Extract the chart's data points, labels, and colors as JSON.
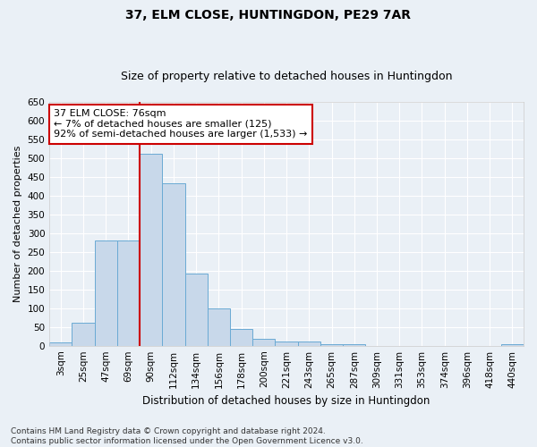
{
  "title": "37, ELM CLOSE, HUNTINGDON, PE29 7AR",
  "subtitle": "Size of property relative to detached houses in Huntingdon",
  "xlabel": "Distribution of detached houses by size in Huntingdon",
  "ylabel": "Number of detached properties",
  "categories": [
    "3sqm",
    "25sqm",
    "47sqm",
    "69sqm",
    "90sqm",
    "112sqm",
    "134sqm",
    "156sqm",
    "178sqm",
    "200sqm",
    "221sqm",
    "243sqm",
    "265sqm",
    "287sqm",
    "309sqm",
    "331sqm",
    "353sqm",
    "374sqm",
    "396sqm",
    "418sqm",
    "440sqm"
  ],
  "values": [
    8,
    62,
    280,
    280,
    512,
    432,
    193,
    100,
    45,
    18,
    12,
    10,
    5,
    4,
    0,
    0,
    0,
    0,
    0,
    0,
    4
  ],
  "bar_color": "#c8d8ea",
  "bar_edge_color": "#6aaad4",
  "background_color": "#eaf0f6",
  "grid_color": "#ffffff",
  "annotation_text": "37 ELM CLOSE: 76sqm\n← 7% of detached houses are smaller (125)\n92% of semi-detached houses are larger (1,533) →",
  "annotation_box_color": "#ffffff",
  "annotation_box_edge_color": "#cc0000",
  "vline_color": "#cc0000",
  "ylim": [
    0,
    650
  ],
  "yticks": [
    0,
    50,
    100,
    150,
    200,
    250,
    300,
    350,
    400,
    450,
    500,
    550,
    600,
    650
  ],
  "footer_text": "Contains HM Land Registry data © Crown copyright and database right 2024.\nContains public sector information licensed under the Open Government Licence v3.0.",
  "title_fontsize": 10,
  "subtitle_fontsize": 9,
  "xlabel_fontsize": 8.5,
  "ylabel_fontsize": 8,
  "tick_fontsize": 7.5,
  "annotation_fontsize": 8,
  "footer_fontsize": 6.5
}
